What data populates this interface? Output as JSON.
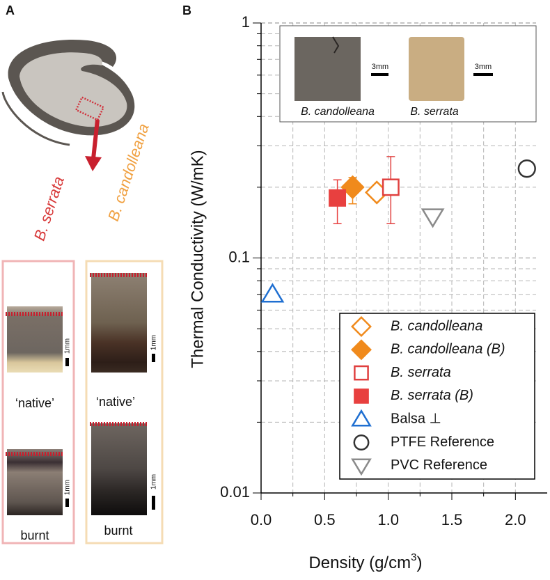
{
  "panel_labels": [
    "A",
    "B"
  ],
  "panel_a": {
    "species": [
      "B. serrata",
      "B. candolleana"
    ],
    "states": [
      "‘native’",
      "burnt"
    ],
    "scale_label": "1mm"
  },
  "chart_data": {
    "type": "scatter",
    "ylabel": "Thermal Conductivity (W/mK)",
    "xlabel": "Density (g/cm",
    "xlabel_sup": "3",
    "xlabel_end": ")",
    "xlim": [
      0,
      2.25
    ],
    "ylim": [
      0.01,
      1
    ],
    "log_y": true,
    "grid": true,
    "legend": "lower right",
    "xticks": [
      {
        "value": 0,
        "label": "0.0"
      },
      {
        "value": 0.5,
        "label": "0.5"
      },
      {
        "value": 1,
        "label": "1.0"
      },
      {
        "value": 1.5,
        "label": "1.5"
      },
      {
        "value": 2,
        "label": "2.0"
      }
    ],
    "x_grid": [
      0.25,
      0.75,
      1.25,
      1.75
    ],
    "yticks": [
      0.01,
      0.1,
      1
    ],
    "y_grid": [
      0.02,
      0.03,
      0.04,
      0.05,
      0.06,
      0.07,
      0.08,
      0.09,
      0.2,
      0.3,
      0.4,
      0.5,
      0.6,
      0.7,
      0.8,
      0.9
    ],
    "inset": {
      "labels": [
        "B. candolleana",
        "B. serrata"
      ],
      "scale_label": "3mm"
    },
    "series": [
      {
        "name": "B. candolleana",
        "color": "#f08a1c",
        "marker": "diamond",
        "filled": false,
        "italic": true,
        "x": [
          0.91
        ],
        "values": [
          0.19
        ]
      },
      {
        "name": "B. candolleana (B)",
        "color": "#f08a1c",
        "marker": "diamond",
        "filled": true,
        "italic": true,
        "x": [
          0.72
        ],
        "values": [
          0.2
        ],
        "y_low": [
          0.17
        ],
        "y_high": [
          0.22
        ]
      },
      {
        "name": "B. serrata",
        "color": "#e0403f",
        "marker": "square",
        "filled": false,
        "italic": true,
        "x": [
          1.02
        ],
        "values": [
          0.2
        ],
        "y_low": [
          0.14
        ],
        "y_high": [
          0.27
        ]
      },
      {
        "name": "B. serrata (B)",
        "color": "#e8403f",
        "marker": "square",
        "filled": true,
        "italic": true,
        "x": [
          0.6
        ],
        "values": [
          0.18
        ],
        "y_low": [
          0.14
        ],
        "y_high": [
          0.215
        ]
      },
      {
        "name": "Balsa ⊥",
        "color": "#1f6fd1",
        "marker": "triangle",
        "filled": false,
        "italic": false,
        "x": [
          0.09
        ],
        "values": [
          0.07
        ]
      },
      {
        "name": "PTFE Reference",
        "color": "#333333",
        "marker": "circle",
        "filled": false,
        "italic": false,
        "x": [
          2.09
        ],
        "values": [
          0.24
        ]
      },
      {
        "name": "PVC Reference",
        "color": "#8a8a8a",
        "marker": "triangle-down",
        "filled": false,
        "italic": false,
        "x": [
          1.35
        ],
        "values": [
          0.15
        ]
      }
    ]
  }
}
